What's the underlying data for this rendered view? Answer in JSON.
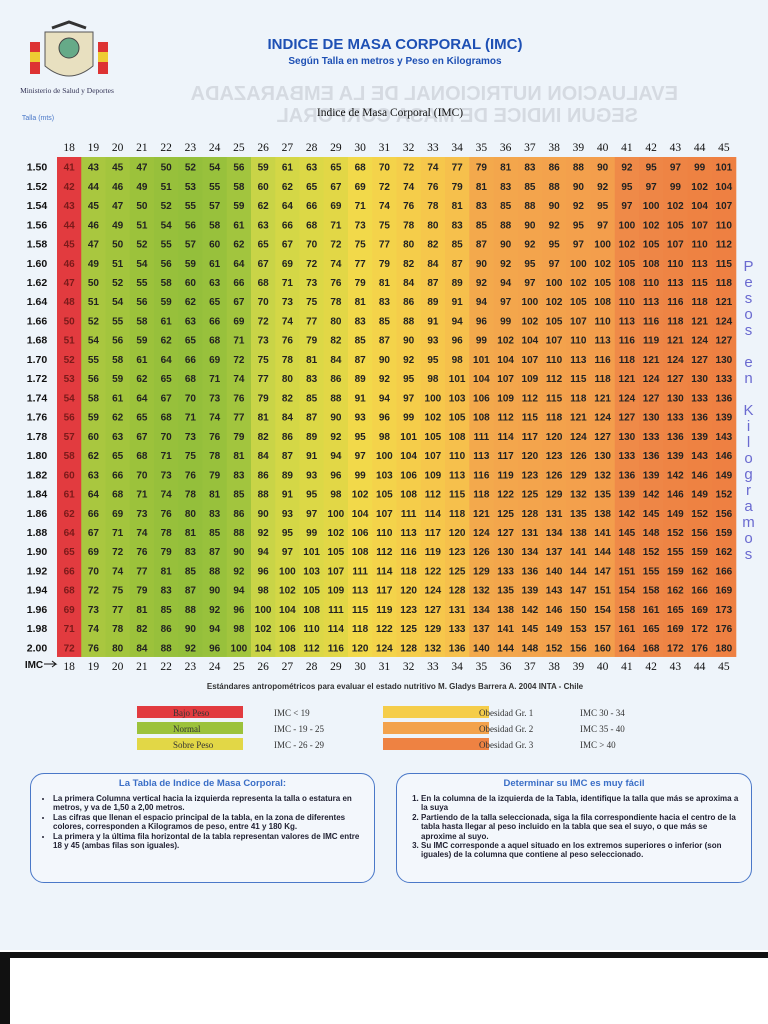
{
  "header": {
    "title": "INDICE DE MASA CORPORAL (IMC)",
    "subtitle": "Según Talla en metros y Peso en Kilogramos",
    "ministry": "Ministerio de Salud y Deportes",
    "watermark": [
      "EVALUACION NUTRICIONAL DE LA EMBARAZADA",
      "SEGUN INDICE DE MASA CORPORAL"
    ]
  },
  "table": {
    "caption": "Indice de Masa Corporal (IMC)",
    "height_label": "Talla (mts)",
    "imc_label": "IMC",
    "side_label": "Pesos en Kilogramos",
    "imc": [
      18,
      19,
      20,
      21,
      22,
      23,
      24,
      25,
      26,
      27,
      28,
      29,
      30,
      31,
      32,
      33,
      34,
      35,
      36,
      37,
      38,
      39,
      40,
      41,
      42,
      43,
      44,
      45
    ],
    "column_colors": [
      "#e23b3f",
      "#a9c73f",
      "#a3c53d",
      "#9cc23b",
      "#97c03b",
      "#94bf3b",
      "#98c13c",
      "#a2c53e",
      "#c9d447",
      "#d4d746",
      "#dcd846",
      "#e2d746",
      "#f2d94a",
      "#f4d34a",
      "#f5cd4a",
      "#f6c74b",
      "#f6c04c",
      "#f3a94c",
      "#f3a64c",
      "#f3a44c",
      "#f3a24c",
      "#f3a04c",
      "#f39e4c",
      "#ef8a48",
      "#ee8646",
      "#ee8444",
      "#ee8242",
      "#ee8042"
    ],
    "rows": [
      {
        "height": "1.50",
        "weights": [
          41,
          43,
          45,
          47,
          50,
          52,
          54,
          56,
          59,
          61,
          63,
          65,
          68,
          70,
          72,
          74,
          77,
          79,
          81,
          83,
          86,
          88,
          90,
          92,
          95,
          97,
          99,
          101
        ]
      },
      {
        "height": "1.52",
        "weights": [
          42,
          44,
          46,
          49,
          51,
          53,
          55,
          58,
          60,
          62,
          65,
          67,
          69,
          72,
          74,
          76,
          79,
          81,
          83,
          85,
          88,
          90,
          92,
          95,
          97,
          99,
          102,
          104
        ]
      },
      {
        "height": "1.54",
        "weights": [
          43,
          45,
          47,
          50,
          52,
          55,
          57,
          59,
          62,
          64,
          66,
          69,
          71,
          74,
          76,
          78,
          81,
          83,
          85,
          88,
          90,
          92,
          95,
          97,
          100,
          102,
          104,
          107
        ]
      },
      {
        "height": "1.56",
        "weights": [
          44,
          46,
          49,
          51,
          54,
          56,
          58,
          61,
          63,
          66,
          68,
          71,
          73,
          75,
          78,
          80,
          83,
          85,
          88,
          90,
          92,
          95,
          97,
          100,
          102,
          105,
          107,
          110
        ]
      },
      {
        "height": "1.58",
        "weights": [
          45,
          47,
          50,
          52,
          55,
          57,
          60,
          62,
          65,
          67,
          70,
          72,
          75,
          77,
          80,
          82,
          85,
          87,
          90,
          92,
          95,
          97,
          100,
          102,
          105,
          107,
          110,
          112
        ]
      },
      {
        "height": "1.60",
        "weights": [
          46,
          49,
          51,
          54,
          56,
          59,
          61,
          64,
          67,
          69,
          72,
          74,
          77,
          79,
          82,
          84,
          87,
          90,
          92,
          95,
          97,
          100,
          102,
          105,
          108,
          110,
          113,
          115
        ]
      },
      {
        "height": "1.62",
        "weights": [
          47,
          50,
          52,
          55,
          58,
          60,
          63,
          66,
          68,
          71,
          73,
          76,
          79,
          81,
          84,
          87,
          89,
          92,
          94,
          97,
          100,
          102,
          105,
          108,
          110,
          113,
          115,
          118
        ]
      },
      {
        "height": "1.64",
        "weights": [
          48,
          51,
          54,
          56,
          59,
          62,
          65,
          67,
          70,
          73,
          75,
          78,
          81,
          83,
          86,
          89,
          91,
          94,
          97,
          100,
          102,
          105,
          108,
          110,
          113,
          116,
          118,
          121
        ]
      },
      {
        "height": "1.66",
        "weights": [
          50,
          52,
          55,
          58,
          61,
          63,
          66,
          69,
          72,
          74,
          77,
          80,
          83,
          85,
          88,
          91,
          94,
          96,
          99,
          102,
          105,
          107,
          110,
          113,
          116,
          118,
          121,
          124
        ]
      },
      {
        "height": "1.68",
        "weights": [
          51,
          54,
          56,
          59,
          62,
          65,
          68,
          71,
          73,
          76,
          79,
          82,
          85,
          87,
          90,
          93,
          96,
          99,
          102,
          104,
          107,
          110,
          113,
          116,
          119,
          121,
          124,
          127
        ]
      },
      {
        "height": "1.70",
        "weights": [
          52,
          55,
          58,
          61,
          64,
          66,
          69,
          72,
          75,
          78,
          81,
          84,
          87,
          90,
          92,
          95,
          98,
          101,
          104,
          107,
          110,
          113,
          116,
          118,
          121,
          124,
          127,
          130
        ]
      },
      {
        "height": "1.72",
        "weights": [
          53,
          56,
          59,
          62,
          65,
          68,
          71,
          74,
          77,
          80,
          83,
          86,
          89,
          92,
          95,
          98,
          101,
          104,
          107,
          109,
          112,
          115,
          118,
          121,
          124,
          127,
          130,
          133
        ]
      },
      {
        "height": "1.74",
        "weights": [
          54,
          58,
          61,
          64,
          67,
          70,
          73,
          76,
          79,
          82,
          85,
          88,
          91,
          94,
          97,
          100,
          103,
          106,
          109,
          112,
          115,
          118,
          121,
          124,
          127,
          130,
          133,
          136
        ]
      },
      {
        "height": "1.76",
        "weights": [
          56,
          59,
          62,
          65,
          68,
          71,
          74,
          77,
          81,
          84,
          87,
          90,
          93,
          96,
          99,
          102,
          105,
          108,
          112,
          115,
          118,
          121,
          124,
          127,
          130,
          133,
          136,
          139
        ]
      },
      {
        "height": "1.78",
        "weights": [
          57,
          60,
          63,
          67,
          70,
          73,
          76,
          79,
          82,
          86,
          89,
          92,
          95,
          98,
          101,
          105,
          108,
          111,
          114,
          117,
          120,
          124,
          127,
          130,
          133,
          136,
          139,
          143
        ]
      },
      {
        "height": "1.80",
        "weights": [
          58,
          62,
          65,
          68,
          71,
          75,
          78,
          81,
          84,
          87,
          91,
          94,
          97,
          100,
          104,
          107,
          110,
          113,
          117,
          120,
          123,
          126,
          130,
          133,
          136,
          139,
          143,
          146
        ]
      },
      {
        "height": "1.82",
        "weights": [
          60,
          63,
          66,
          70,
          73,
          76,
          79,
          83,
          86,
          89,
          93,
          96,
          99,
          103,
          106,
          109,
          113,
          116,
          119,
          123,
          126,
          129,
          132,
          136,
          139,
          142,
          146,
          149
        ]
      },
      {
        "height": "1.84",
        "weights": [
          61,
          64,
          68,
          71,
          74,
          78,
          81,
          85,
          88,
          91,
          95,
          98,
          102,
          105,
          108,
          112,
          115,
          118,
          122,
          125,
          129,
          132,
          135,
          139,
          142,
          146,
          149,
          152
        ]
      },
      {
        "height": "1.86",
        "weights": [
          62,
          66,
          69,
          73,
          76,
          80,
          83,
          86,
          90,
          93,
          97,
          100,
          104,
          107,
          111,
          114,
          118,
          121,
          125,
          128,
          131,
          135,
          138,
          142,
          145,
          149,
          152,
          156
        ]
      },
      {
        "height": "1.88",
        "weights": [
          64,
          67,
          71,
          74,
          78,
          81,
          85,
          88,
          92,
          95,
          99,
          102,
          106,
          110,
          113,
          117,
          120,
          124,
          127,
          131,
          134,
          138,
          141,
          145,
          148,
          152,
          156,
          159
        ]
      },
      {
        "height": "1.90",
        "weights": [
          65,
          69,
          72,
          76,
          79,
          83,
          87,
          90,
          94,
          97,
          101,
          105,
          108,
          112,
          116,
          119,
          123,
          126,
          130,
          134,
          137,
          141,
          144,
          148,
          152,
          155,
          159,
          162
        ]
      },
      {
        "height": "1.92",
        "weights": [
          66,
          70,
          74,
          77,
          81,
          85,
          88,
          92,
          96,
          100,
          103,
          107,
          111,
          114,
          118,
          122,
          125,
          129,
          133,
          136,
          140,
          144,
          147,
          151,
          155,
          159,
          162,
          166
        ]
      },
      {
        "height": "1.94",
        "weights": [
          68,
          72,
          75,
          79,
          83,
          87,
          90,
          94,
          98,
          102,
          105,
          109,
          113,
          117,
          120,
          124,
          128,
          132,
          135,
          139,
          143,
          147,
          151,
          154,
          158,
          162,
          166,
          169
        ]
      },
      {
        "height": "1.96",
        "weights": [
          69,
          73,
          77,
          81,
          85,
          88,
          92,
          96,
          100,
          104,
          108,
          111,
          115,
          119,
          123,
          127,
          131,
          134,
          138,
          142,
          146,
          150,
          154,
          158,
          161,
          165,
          169,
          173
        ]
      },
      {
        "height": "1.98",
        "weights": [
          71,
          74,
          78,
          82,
          86,
          90,
          94,
          98,
          102,
          106,
          110,
          114,
          118,
          122,
          125,
          129,
          133,
          137,
          141,
          145,
          149,
          153,
          157,
          161,
          165,
          169,
          172,
          176
        ]
      },
      {
        "height": "2.00",
        "weights": [
          72,
          76,
          80,
          84,
          88,
          92,
          96,
          100,
          104,
          108,
          112,
          116,
          120,
          124,
          128,
          132,
          136,
          140,
          144,
          148,
          152,
          156,
          160,
          164,
          168,
          172,
          176,
          180
        ]
      }
    ]
  },
  "source": "Estándares antropométricos para evaluar el estado nutritivo M. Gladys Barrera A. 2004 INTA - Chile",
  "legend": [
    {
      "label": "Bajo Peso",
      "range": "IMC < 19",
      "color": "#e23b3f"
    },
    {
      "label": "Normal",
      "range": "IMC - 19 - 25",
      "color": "#9cc23b"
    },
    {
      "label": "Sobre Peso",
      "range": "IMC - 26 - 29",
      "color": "#e2d746"
    },
    {
      "label": "Obesidad Gr. 1",
      "range": "IMC  30 - 34",
      "color": "#f5cd4a"
    },
    {
      "label": "Obesidad Gr. 2",
      "range": "IMC  35 - 40",
      "color": "#f3a24c"
    },
    {
      "label": "Obesidad Gr. 3",
      "range": "IMC  > 40",
      "color": "#ee8242"
    }
  ],
  "info_left": {
    "title": "La Tabla de Indice de Masa Corporal:",
    "items": [
      "La primera Columna vertical hacia la izquierda representa la talla o estatura en metros, y va de 1,50 a 2,00 metros.",
      "Las cifras que llenan el espacio principal de la tabla, en la zona de diferentes colores, corresponden a Kilogramos de peso, entre 41 y 180 Kg.",
      "La primera y la última fila horizontal de la tabla representan valores de IMC entre 18 y 45 (ambas filas son iguales)."
    ]
  },
  "info_right": {
    "title": "Determinar su IMC es muy fácil",
    "items": [
      "En la columna de la izquierda de la Tabla, identifique la talla que más se aproxima a la suya",
      "Partiendo de la talla seleccionada, siga la fila correspondiente hacia el centro de la tabla hasta llegar al peso incluido en la tabla que sea el suyo, o que más se aproxime al suyo.",
      "Su IMC corresponde a aquel situado en los extremos superiores o inferior (son iguales) de la columna que contiene al peso seleccionado."
    ]
  }
}
